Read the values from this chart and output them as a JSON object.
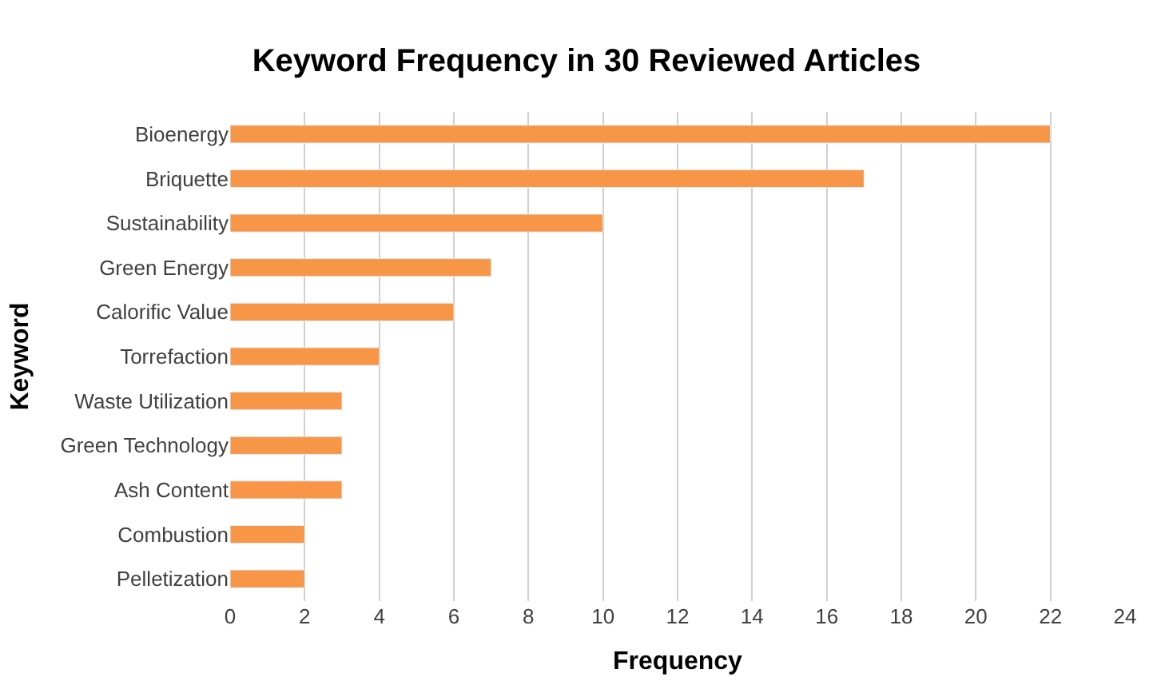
{
  "chart_data": {
    "type": "bar",
    "orientation": "horizontal",
    "title": "Keyword Frequency in 30 Reviewed Articles",
    "xlabel": "Frequency",
    "ylabel": "Keyword",
    "categories": [
      "Bioenergy",
      "Briquette",
      "Sustainability",
      "Green Energy",
      "Calorific Value",
      "Torrefaction",
      "Waste Utilization",
      "Green Technology",
      "Ash Content",
      "Combustion",
      "Pelletization"
    ],
    "values": [
      22,
      17,
      10,
      7,
      6,
      4,
      3,
      3,
      3,
      2,
      2
    ],
    "color": "#f79646",
    "xlim": [
      0,
      24
    ],
    "xticks": [
      0,
      2,
      4,
      6,
      8,
      10,
      12,
      14,
      16,
      18,
      20,
      22,
      24
    ],
    "grid": "x"
  }
}
